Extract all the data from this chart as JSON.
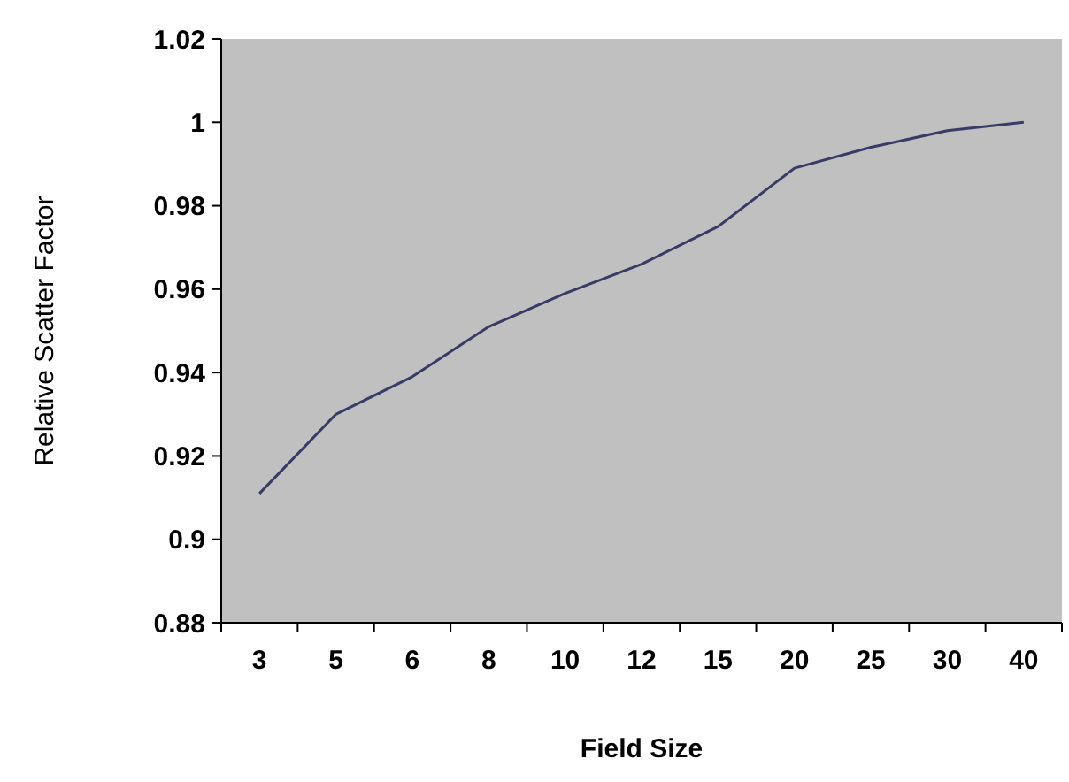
{
  "chart_data": {
    "type": "line",
    "xlabel": "Field Size",
    "ylabel": "Relative Scatter Factor",
    "categories": [
      "3",
      "5",
      "6",
      "8",
      "10",
      "12",
      "15",
      "20",
      "25",
      "30",
      "40"
    ],
    "series": [
      {
        "color": "#3a3a66",
        "values": [
          0.911,
          0.93,
          0.939,
          0.951,
          0.959,
          0.966,
          0.975,
          0.989,
          0.994,
          0.998,
          1.0
        ]
      }
    ],
    "ylim": [
      0.88,
      1.02
    ],
    "yticks": [
      0.88,
      0.9,
      0.92,
      0.94,
      0.96,
      0.98,
      1,
      1.02
    ],
    "grid": false,
    "marker": "none",
    "line_style": "solid"
  }
}
